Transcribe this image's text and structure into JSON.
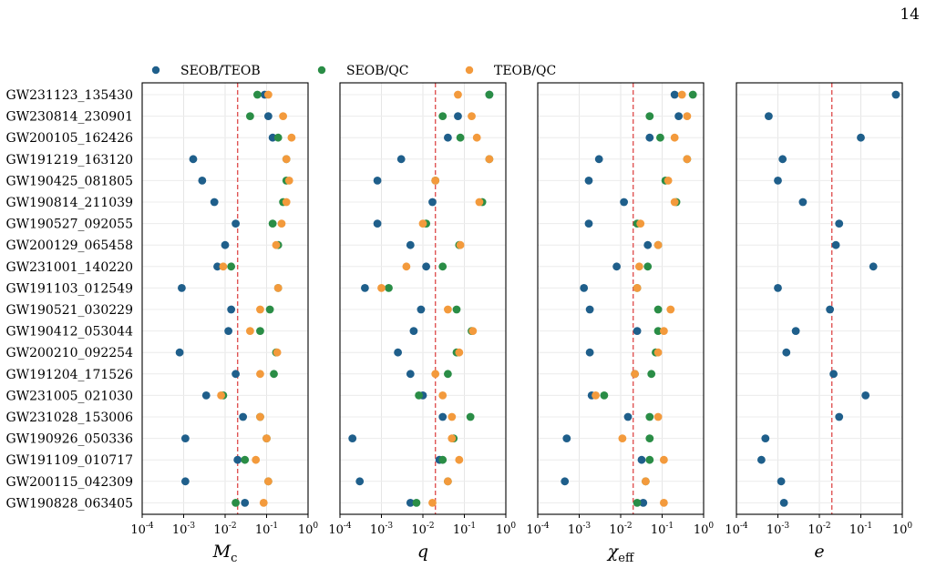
{
  "page": {
    "number": "14"
  },
  "colors": {
    "SEOB/TEOB": "#1f5f8b",
    "SEOB/QC": "#2a8d46",
    "TEOB/QC": "#f39a3c",
    "threshold": "#e05555"
  },
  "chart_data": {
    "type": "scatter",
    "legend": [
      "SEOB/TEOB",
      "SEOB/QC",
      "TEOB/QC"
    ],
    "legend_placement": "top",
    "events": [
      "GW231123_135430",
      "GW230814_230901",
      "GW200105_162426",
      "GW191219_163120",
      "GW190425_081805",
      "GW190814_211039",
      "GW190527_092055",
      "GW200129_065458",
      "GW231001_140220",
      "GW191103_012549",
      "GW190521_030229",
      "GW190412_053044",
      "GW200210_092254",
      "GW191204_171526",
      "GW231005_021030",
      "GW231028_153006",
      "GW190926_050336",
      "GW191109_010717",
      "GW200115_042309",
      "GW190828_063405"
    ],
    "x_scale": "log",
    "xlim": [
      0.0001,
      1
    ],
    "xticks": [
      "10^-4",
      "10^-3",
      "10^-2",
      "10^-1",
      "10^0"
    ],
    "threshold": 0.02,
    "grid": true,
    "panels": [
      {
        "xlabel": "M_c",
        "series": [
          {
            "name": "SEOB/TEOB",
            "values": [
              0.09,
              0.11,
              0.14,
              0.0017,
              0.0028,
              0.0055,
              0.018,
              0.01,
              0.0065,
              0.0009,
              0.014,
              0.012,
              0.0008,
              0.018,
              0.0035,
              0.027,
              0.0011,
              0.02,
              0.0011,
              0.03
            ]
          },
          {
            "name": "SEOB/QC",
            "values": [
              0.06,
              0.04,
              0.19,
              0.3,
              0.3,
              0.25,
              0.14,
              0.19,
              0.014,
              0.19,
              0.12,
              0.07,
              0.17,
              0.15,
              0.009,
              0.07,
              0.1,
              0.03,
              0.11,
              0.018
            ]
          },
          {
            "name": "TEOB/QC",
            "values": [
              0.11,
              0.25,
              0.4,
              0.3,
              0.35,
              0.3,
              0.23,
              0.17,
              0.009,
              0.19,
              0.07,
              0.04,
              0.18,
              0.07,
              0.008,
              0.07,
              0.1,
              0.055,
              0.11,
              0.085
            ]
          }
        ]
      },
      {
        "xlabel": "q",
        "series": [
          {
            "name": "SEOB/TEOB",
            "values": [
              0.4,
              0.07,
              0.04,
              0.003,
              0.0008,
              0.017,
              0.0008,
              0.005,
              0.012,
              0.0004,
              0.009,
              0.006,
              0.0025,
              0.005,
              0.01,
              0.03,
              0.0002,
              0.025,
              0.0003,
              0.005
            ]
          },
          {
            "name": "SEOB/QC",
            "values": [
              0.4,
              0.03,
              0.08,
              0.4,
              0.02,
              0.27,
              0.012,
              0.075,
              0.03,
              0.0015,
              0.065,
              0.15,
              0.065,
              0.04,
              0.008,
              0.14,
              0.055,
              0.03,
              0.04,
              0.007
            ]
          },
          {
            "name": "TEOB/QC",
            "values": [
              0.07,
              0.15,
              0.2,
              0.4,
              0.02,
              0.23,
              0.01,
              0.08,
              0.004,
              0.001,
              0.04,
              0.16,
              0.075,
              0.02,
              0.03,
              0.05,
              0.05,
              0.075,
              0.04,
              0.017
            ]
          }
        ]
      },
      {
        "xlabel": "χ_eff",
        "series": [
          {
            "name": "SEOB/TEOB",
            "values": [
              0.2,
              0.25,
              0.05,
              0.003,
              0.0017,
              0.012,
              0.0017,
              0.045,
              0.008,
              0.0013,
              0.0018,
              0.025,
              0.0018,
              0.022,
              0.002,
              0.015,
              0.0005,
              0.032,
              0.00045,
              0.035
            ]
          },
          {
            "name": "SEOB/QC",
            "values": [
              0.55,
              0.05,
              0.09,
              0.4,
              0.12,
              0.22,
              0.025,
              0.08,
              0.045,
              0.025,
              0.08,
              0.08,
              0.07,
              0.055,
              0.004,
              0.05,
              0.05,
              0.05,
              0.04,
              0.025
            ]
          },
          {
            "name": "TEOB/QC",
            "values": [
              0.3,
              0.4,
              0.2,
              0.4,
              0.14,
              0.2,
              0.03,
              0.08,
              0.028,
              0.025,
              0.16,
              0.11,
              0.08,
              0.022,
              0.0025,
              0.08,
              0.011,
              0.11,
              0.04,
              0.11
            ]
          }
        ]
      },
      {
        "xlabel": "e",
        "series": [
          {
            "name": "SEOB/TEOB",
            "values": [
              0.7,
              0.0006,
              0.1,
              0.0013,
              0.001,
              0.004,
              0.03,
              0.025,
              0.2,
              0.001,
              0.018,
              0.0027,
              0.0016,
              0.022,
              0.13,
              0.03,
              0.0005,
              0.0004,
              0.0012,
              0.0014
            ]
          }
        ]
      }
    ]
  }
}
